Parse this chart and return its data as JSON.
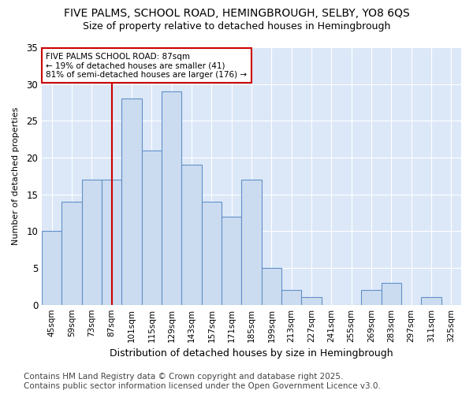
{
  "title1": "FIVE PALMS, SCHOOL ROAD, HEMINGBROUGH, SELBY, YO8 6QS",
  "title2": "Size of property relative to detached houses in Hemingbrough",
  "xlabel": "Distribution of detached houses by size in Hemingbrough",
  "ylabel": "Number of detached properties",
  "categories": [
    "45sqm",
    "59sqm",
    "73sqm",
    "87sqm",
    "101sqm",
    "115sqm",
    "129sqm",
    "143sqm",
    "157sqm",
    "171sqm",
    "185sqm",
    "199sqm",
    "213sqm",
    "227sqm",
    "241sqm",
    "255sqm",
    "269sqm",
    "283sqm",
    "297sqm",
    "311sqm",
    "325sqm"
  ],
  "values": [
    10,
    14,
    17,
    17,
    28,
    21,
    29,
    19,
    14,
    12,
    17,
    5,
    2,
    1,
    0,
    0,
    2,
    3,
    0,
    1,
    0
  ],
  "bar_color": "#ccdcf0",
  "bar_edge_color": "#6090c8",
  "background_color": "#ffffff",
  "plot_bg_color": "#dce8f8",
  "grid_color": "#ffffff",
  "vline_x": 3,
  "vline_color": "#cc0000",
  "annotation_text": "FIVE PALMS SCHOOL ROAD: 87sqm\n← 19% of detached houses are smaller (41)\n81% of semi-detached houses are larger (176) →",
  "annotation_box_color": "#ffffff",
  "annotation_box_edge": "#cc0000",
  "ylim": [
    0,
    35
  ],
  "yticks": [
    0,
    5,
    10,
    15,
    20,
    25,
    30,
    35
  ],
  "footer": "Contains HM Land Registry data © Crown copyright and database right 2025.\nContains public sector information licensed under the Open Government Licence v3.0.",
  "footer_fontsize": 7.5,
  "title1_fontsize": 10,
  "title2_fontsize": 9,
  "xlabel_fontsize": 9,
  "ylabel_fontsize": 8
}
